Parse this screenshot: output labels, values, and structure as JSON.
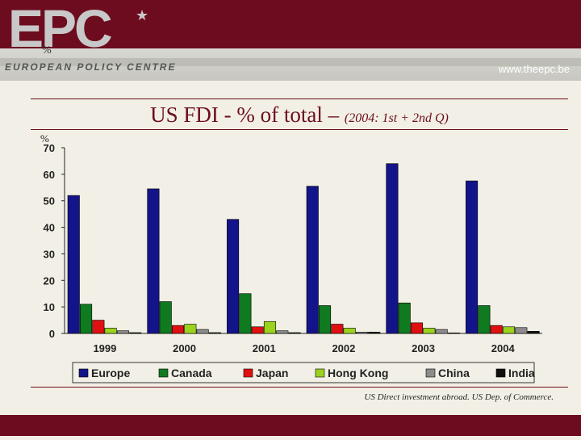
{
  "header": {
    "logo": "EPC",
    "logo_sub": "EUROPEAN POLICY CENTRE",
    "logo_symbol": "%",
    "url": "www.theepc.be"
  },
  "title": {
    "main": "US FDI - % of total – ",
    "sub": "(2004: 1st + 2nd Q)"
  },
  "footer": {
    "source": "US Direct investment abroad. US Dep. of Commerce."
  },
  "colors": {
    "brand": "#6d0c1f",
    "Europe": "#14148a",
    "Canada": "#0f7a1f",
    "Japan": "#e01010",
    "Hong Kong": "#9ad21e",
    "China": "#8c8c8c",
    "India": "#101010"
  },
  "chart_data": {
    "type": "bar",
    "ylabel": "%",
    "ylim": [
      0,
      70
    ],
    "yticks": [
      0,
      10,
      20,
      30,
      40,
      50,
      60,
      70
    ],
    "categories": [
      "1999",
      "2000",
      "2001",
      "2002",
      "2003",
      "2004"
    ],
    "series": [
      {
        "name": "Europe",
        "values": [
          52,
          54.5,
          43,
          55.5,
          64,
          57.5
        ]
      },
      {
        "name": "Canada",
        "values": [
          11,
          12,
          15,
          10.5,
          11.5,
          10.5
        ]
      },
      {
        "name": "Japan",
        "values": [
          5,
          3,
          2.5,
          3.5,
          4,
          3
        ]
      },
      {
        "name": "Hong Kong",
        "values": [
          2,
          3.5,
          4.5,
          2,
          2,
          2.5
        ]
      },
      {
        "name": "China",
        "values": [
          1,
          1.5,
          1,
          0.5,
          1.5,
          2.2
        ]
      },
      {
        "name": "India",
        "values": [
          0.3,
          0.3,
          0.3,
          0.5,
          0.2,
          0.8
        ]
      }
    ],
    "grid": false,
    "legend": "bottom"
  }
}
